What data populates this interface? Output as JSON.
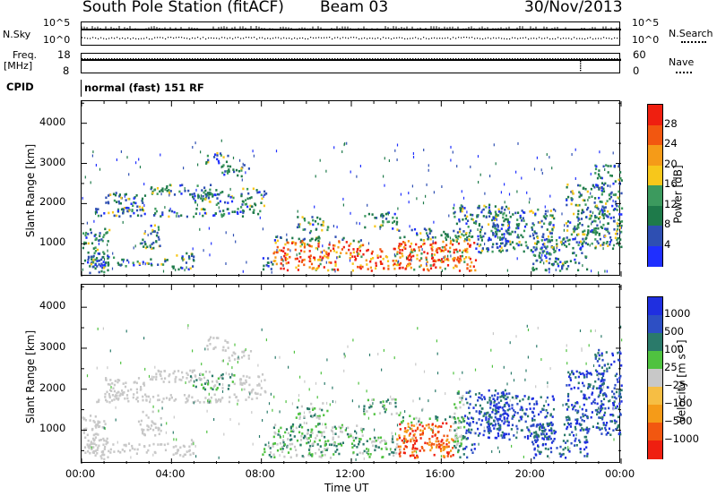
{
  "header": {
    "station": "South Pole Station (fitACF)",
    "beam": "Beam 03",
    "date": "30/Nov/2013"
  },
  "strip_panels": {
    "nsky": {
      "label": "N.Sky",
      "ticks": [
        "10^5",
        "10^0"
      ],
      "right_label": "N.Search",
      "right_ticks": [
        "10^5",
        "10^0"
      ]
    },
    "freq": {
      "label_top": "Freq.",
      "label_bottom": "[MHz]",
      "ticks": [
        "18",
        "8"
      ],
      "right_label": "Nave",
      "right_ticks": [
        "60",
        "0"
      ]
    },
    "cpid": {
      "label": "CPID",
      "mode": "normal (fast) 151 RF"
    }
  },
  "colors": {
    "power": [
      "#1f2fff",
      "#2e4fb2",
      "#1e7a4a",
      "#3c9a5e",
      "#f7c71b",
      "#f59b18",
      "#f25710",
      "#ef1f10"
    ],
    "velocity": [
      "#ef1f10",
      "#f25710",
      "#f59b18",
      "#f6be44",
      "#c8c8c8",
      "#4fc240",
      "#2a7a6a",
      "#2d4fc4",
      "#1f2fe0"
    ]
  },
  "chart_data": [
    {
      "type": "heatmap",
      "name": "power",
      "xlabel": "",
      "ylabel": "Slant Range [km]",
      "x_ticks": [
        "00:00",
        "04:00",
        "08:00",
        "12:00",
        "16:00",
        "20:00",
        "00:00"
      ],
      "y_ticks": [
        "1000",
        "2000",
        "3000",
        "4000"
      ],
      "ylim": [
        180,
        4550
      ],
      "colorbar": {
        "label": "Power [dB]",
        "ticks": [
          "4",
          "8",
          "12",
          "16",
          "20",
          "24",
          "28"
        ],
        "range": [
          0,
          32
        ]
      }
    },
    {
      "type": "heatmap",
      "name": "velocity",
      "xlabel": "Time UT",
      "ylabel": "Slant Range [km]",
      "x_ticks": [
        "00:00",
        "04:00",
        "08:00",
        "12:00",
        "16:00",
        "20:00",
        "00:00"
      ],
      "y_ticks": [
        "1000",
        "2000",
        "3000",
        "4000"
      ],
      "ylim": [
        180,
        4550
      ],
      "colorbar": {
        "label": "Velocity [m s⁻¹]",
        "ticks": [
          "1000",
          "500",
          "100",
          "25",
          "−25",
          "−100",
          "−500",
          "−1000"
        ],
        "range": [
          -1000,
          1000
        ]
      }
    }
  ]
}
